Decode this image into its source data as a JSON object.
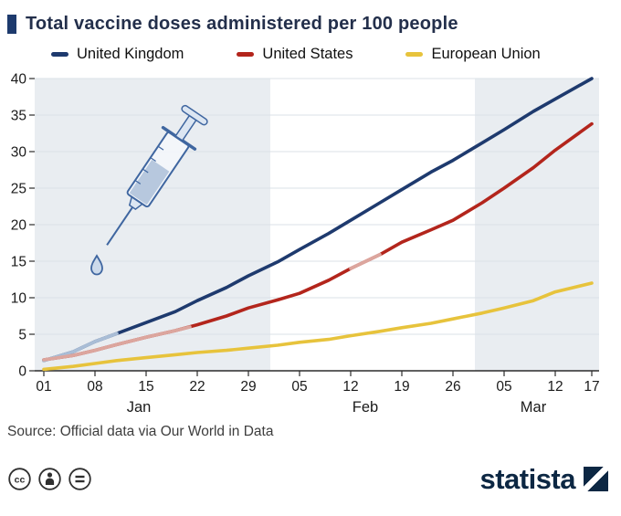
{
  "title": "Total vaccine doses administered per 100 people",
  "legend": [
    {
      "label": "United Kingdom",
      "color": "#1e3a6e"
    },
    {
      "label": "United States",
      "color": "#b3251c"
    },
    {
      "label": "European Union",
      "color": "#e7c33c"
    }
  ],
  "source": "Source: Official data via Our World in Data",
  "branding": {
    "logo_text": "statista"
  },
  "license_icons": [
    "cc-icon",
    "attribution-icon",
    "equals-icon"
  ],
  "chart_data": {
    "type": "line",
    "title": "Total vaccine doses administered per 100 people",
    "xlabel": "",
    "ylabel": "",
    "ylim": [
      0,
      40
    ],
    "yticks": [
      0,
      5,
      10,
      15,
      20,
      25,
      30,
      35,
      40
    ],
    "x_unit": "days since Jan 01",
    "x_ticks": [
      {
        "day": 0,
        "label": "01"
      },
      {
        "day": 7,
        "label": "08"
      },
      {
        "day": 14,
        "label": "15"
      },
      {
        "day": 21,
        "label": "22"
      },
      {
        "day": 28,
        "label": "29"
      },
      {
        "day": 35,
        "label": "05"
      },
      {
        "day": 42,
        "label": "12"
      },
      {
        "day": 49,
        "label": "19"
      },
      {
        "day": 56,
        "label": "26"
      },
      {
        "day": 63,
        "label": "05"
      },
      {
        "day": 70,
        "label": "12"
      },
      {
        "day": 75,
        "label": "17"
      }
    ],
    "month_labels": [
      {
        "label": "Jan",
        "day": 13
      },
      {
        "label": "Feb",
        "day": 44
      },
      {
        "label": "Mar",
        "day": 67
      }
    ],
    "bands": [
      {
        "start_day": 0,
        "end_day": 31
      },
      {
        "start_day": 59,
        "end_day": 75
      }
    ],
    "grid": true,
    "legend_position": "top",
    "series": [
      {
        "name": "United Kingdom",
        "color": "#1e3a6e",
        "points": [
          [
            0,
            1.4
          ],
          [
            4,
            2.6
          ],
          [
            7,
            4.0
          ],
          [
            10,
            5.1
          ],
          [
            14,
            6.6
          ],
          [
            18,
            8.1
          ],
          [
            21,
            9.6
          ],
          [
            25,
            11.4
          ],
          [
            28,
            13.0
          ],
          [
            32,
            14.9
          ],
          [
            35,
            16.6
          ],
          [
            39,
            18.8
          ],
          [
            42,
            20.6
          ],
          [
            46,
            23.0
          ],
          [
            49,
            24.8
          ],
          [
            53,
            27.2
          ],
          [
            56,
            28.8
          ],
          [
            60,
            31.2
          ],
          [
            63,
            33.0
          ],
          [
            67,
            35.5
          ],
          [
            70,
            37.2
          ],
          [
            75,
            40.0
          ]
        ],
        "light_segments": [
          {
            "color": "#a9bdd6",
            "points": [
              [
                0,
                1.4
              ],
              [
                4,
                2.6
              ],
              [
                7,
                4.0
              ],
              [
                10,
                5.1
              ]
            ]
          }
        ]
      },
      {
        "name": "United States",
        "color": "#b3251c",
        "points": [
          [
            0,
            1.5
          ],
          [
            4,
            2.1
          ],
          [
            7,
            2.8
          ],
          [
            10,
            3.6
          ],
          [
            14,
            4.6
          ],
          [
            18,
            5.5
          ],
          [
            21,
            6.3
          ],
          [
            25,
            7.5
          ],
          [
            28,
            8.6
          ],
          [
            32,
            9.7
          ],
          [
            35,
            10.6
          ],
          [
            39,
            12.4
          ],
          [
            42,
            14.0
          ],
          [
            46,
            15.9
          ],
          [
            49,
            17.6
          ],
          [
            53,
            19.3
          ],
          [
            56,
            20.6
          ],
          [
            60,
            23.0
          ],
          [
            63,
            25.0
          ],
          [
            67,
            27.8
          ],
          [
            70,
            30.2
          ],
          [
            75,
            33.8
          ]
        ],
        "light_segments": [
          {
            "color": "#dca69e",
            "points": [
              [
                0,
                1.5
              ],
              [
                4,
                2.1
              ],
              [
                7,
                2.8
              ],
              [
                10,
                3.6
              ],
              [
                14,
                4.6
              ],
              [
                18,
                5.5
              ],
              [
                20,
                6.0
              ]
            ]
          },
          {
            "color": "#dca69e",
            "points": [
              [
                42,
                14.0
              ],
              [
                46,
                15.9
              ]
            ]
          }
        ]
      },
      {
        "name": "European Union",
        "color": "#e7c33c",
        "points": [
          [
            0,
            0.2
          ],
          [
            4,
            0.6
          ],
          [
            7,
            1.0
          ],
          [
            10,
            1.4
          ],
          [
            14,
            1.8
          ],
          [
            18,
            2.2
          ],
          [
            21,
            2.5
          ],
          [
            25,
            2.8
          ],
          [
            28,
            3.1
          ],
          [
            32,
            3.5
          ],
          [
            35,
            3.9
          ],
          [
            39,
            4.3
          ],
          [
            42,
            4.8
          ],
          [
            46,
            5.4
          ],
          [
            49,
            5.9
          ],
          [
            53,
            6.5
          ],
          [
            56,
            7.1
          ],
          [
            60,
            7.9
          ],
          [
            63,
            8.6
          ],
          [
            67,
            9.6
          ],
          [
            70,
            10.8
          ],
          [
            75,
            12.0
          ]
        ],
        "light_segments": []
      }
    ],
    "colors": {
      "band": "#e9edf1",
      "grid": "#dbe1e7",
      "axis": "#2b2b2b",
      "tick_text": "#1a1a1a"
    }
  }
}
